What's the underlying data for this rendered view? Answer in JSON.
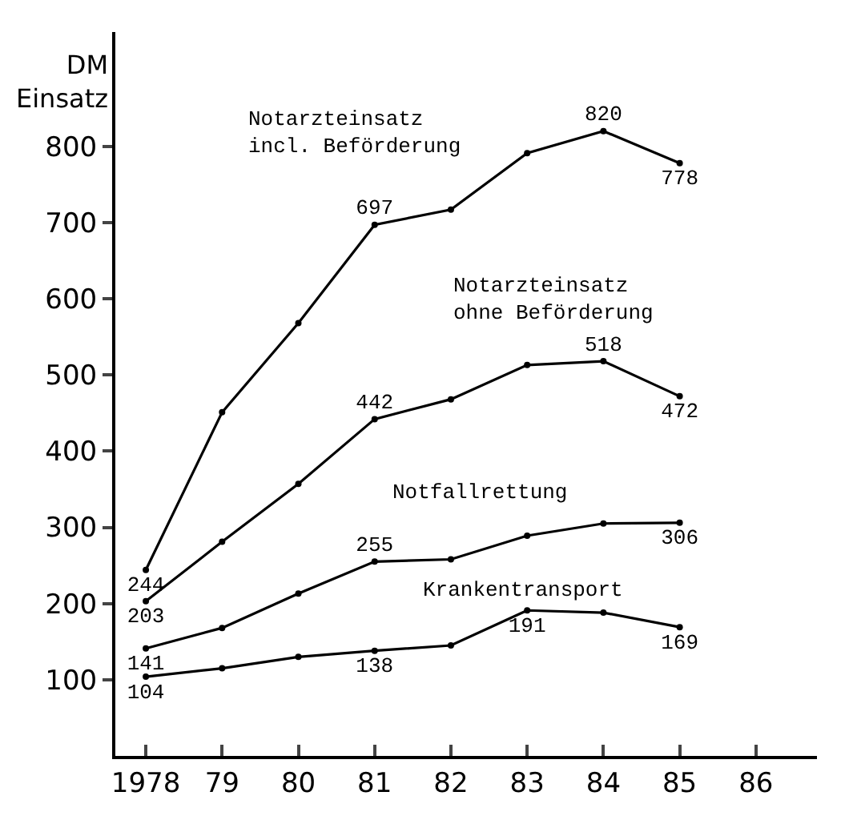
{
  "chart_data": {
    "type": "line",
    "ylabel": "DM Einsatz",
    "x": [
      1978,
      1979,
      1980,
      1981,
      1982,
      1983,
      1984,
      1985
    ],
    "series": [
      {
        "name": "Notarzteinsatz incl. Beförderung",
        "color": "#000000",
        "values": [
          244,
          451,
          568,
          697,
          717,
          791,
          820,
          778
        ],
        "value_labels": [
          "244",
          null,
          null,
          "697",
          null,
          null,
          "820",
          "778"
        ]
      },
      {
        "name": "Notarzteinsatz ohne Beförderung",
        "color": "#000000",
        "values": [
          203,
          281,
          357,
          442,
          468,
          513,
          518,
          472
        ],
        "value_labels": [
          "203",
          null,
          null,
          "442",
          null,
          null,
          "518",
          "472"
        ]
      },
      {
        "name": "Notfallrettung",
        "color": "#000000",
        "values": [
          141,
          168,
          213,
          255,
          258,
          289,
          305,
          306
        ],
        "value_labels": [
          "141",
          null,
          null,
          "255",
          null,
          null,
          null,
          "306"
        ]
      },
      {
        "name": "Krankentransport",
        "color": "#000000",
        "values": [
          104,
          115,
          130,
          138,
          145,
          191,
          188,
          169
        ],
        "value_labels": [
          "104",
          null,
          null,
          "138",
          null,
          "191",
          null,
          "169"
        ]
      }
    ],
    "xlim": [
      1977.6,
      1986.8
    ],
    "xticks": [
      {
        "value": 1978,
        "label": "1978"
      },
      {
        "value": 1979,
        "label": "79"
      },
      {
        "value": 1980,
        "label": "80"
      },
      {
        "value": 1981,
        "label": "81"
      },
      {
        "value": 1982,
        "label": "82"
      },
      {
        "value": 1983,
        "label": "83"
      },
      {
        "value": 1984,
        "label": "84"
      },
      {
        "value": 1985,
        "label": "85"
      },
      {
        "value": 1986,
        "label": "86"
      }
    ],
    "ylim": [
      0,
      950
    ],
    "yticks": [
      100,
      200,
      300,
      400,
      500,
      600,
      700,
      800
    ],
    "legend": false,
    "marker": "circle",
    "line_style": "solid"
  }
}
